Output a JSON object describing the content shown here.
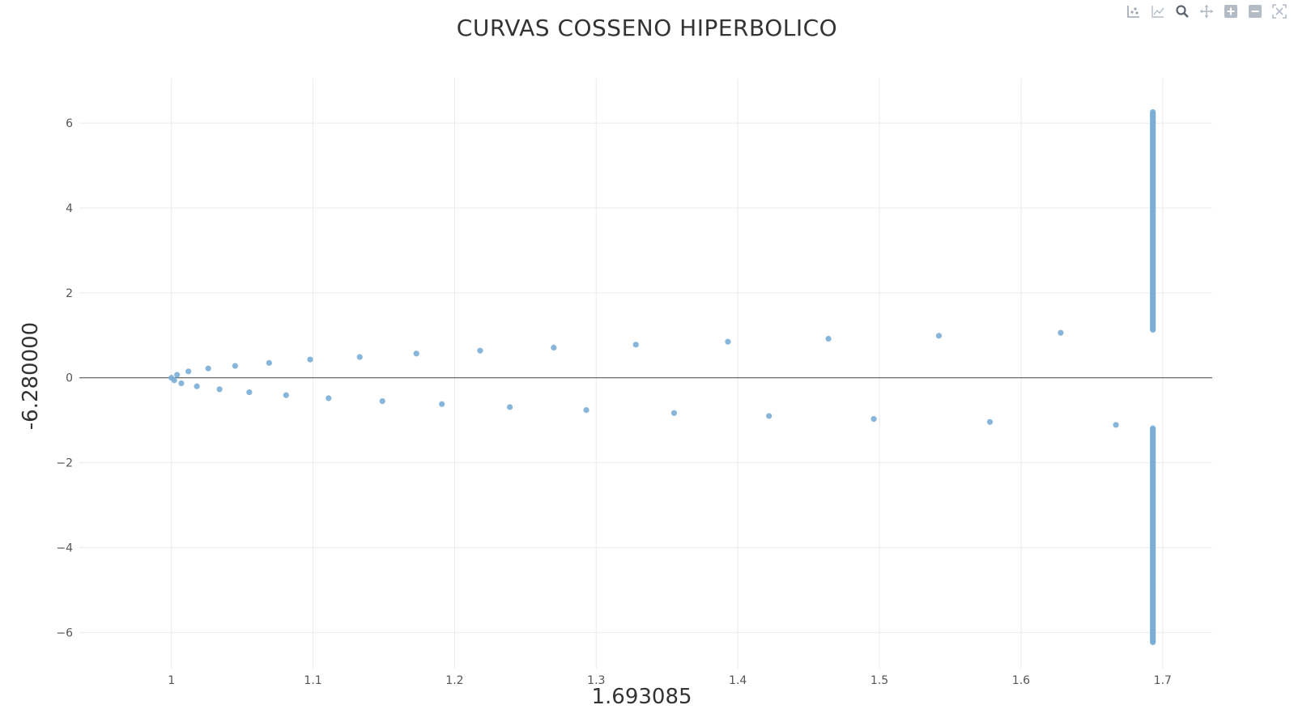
{
  "chart_data": {
    "type": "scatter",
    "title": "CURVAS COSSENO HIPERBOLICO",
    "xlabel": "1.693085",
    "ylabel": "-6.280000",
    "xlim": [
      0.935,
      1.735
    ],
    "ylim": [
      -6.85,
      7.05
    ],
    "xticks": [
      1,
      1.1,
      1.2,
      1.3,
      1.4,
      1.5,
      1.6,
      1.7
    ],
    "xtick_labels": [
      "1",
      "1.1",
      "1.2",
      "1.3",
      "1.4",
      "1.5",
      "1.6",
      "1.7"
    ],
    "yticks": [
      -6,
      -4,
      -2,
      0,
      2,
      4,
      6
    ],
    "ytick_labels": [
      "−6",
      "−4",
      "−2",
      "0",
      "2",
      "4",
      "6"
    ],
    "grid": true,
    "zeroline": true,
    "marker_color": "#7aaed6",
    "series": [
      {
        "values": [
          {
            "x": 1.0,
            "y": 0.0
          },
          {
            "x": 1.002,
            "y": -0.06
          },
          {
            "x": 1.004,
            "y": 0.07
          },
          {
            "x": 1.007,
            "y": -0.13
          },
          {
            "x": 1.012,
            "y": 0.15
          },
          {
            "x": 1.018,
            "y": -0.2
          },
          {
            "x": 1.026,
            "y": 0.22
          },
          {
            "x": 1.034,
            "y": -0.27
          },
          {
            "x": 1.045,
            "y": 0.28
          },
          {
            "x": 1.055,
            "y": -0.34
          },
          {
            "x": 1.069,
            "y": 0.35
          },
          {
            "x": 1.081,
            "y": -0.41
          },
          {
            "x": 1.098,
            "y": 0.43
          },
          {
            "x": 1.111,
            "y": -0.48
          },
          {
            "x": 1.133,
            "y": 0.49
          },
          {
            "x": 1.149,
            "y": -0.55
          },
          {
            "x": 1.173,
            "y": 0.57
          },
          {
            "x": 1.191,
            "y": -0.62
          },
          {
            "x": 1.218,
            "y": 0.64
          },
          {
            "x": 1.239,
            "y": -0.69
          },
          {
            "x": 1.27,
            "y": 0.71
          },
          {
            "x": 1.293,
            "y": -0.76
          },
          {
            "x": 1.328,
            "y": 0.78
          },
          {
            "x": 1.355,
            "y": -0.83
          },
          {
            "x": 1.393,
            "y": 0.85
          },
          {
            "x": 1.422,
            "y": -0.9
          },
          {
            "x": 1.464,
            "y": 0.92
          },
          {
            "x": 1.496,
            "y": -0.97
          },
          {
            "x": 1.542,
            "y": 0.99
          },
          {
            "x": 1.578,
            "y": -1.04
          },
          {
            "x": 1.628,
            "y": 1.06
          },
          {
            "x": 1.667,
            "y": -1.11
          }
        ]
      },
      {
        "x_constant": 1.693085,
        "y_ranges": [
          [
            1.13,
            6.26
          ],
          [
            -6.23,
            -1.18
          ]
        ],
        "y_step": 0.03
      }
    ]
  }
}
